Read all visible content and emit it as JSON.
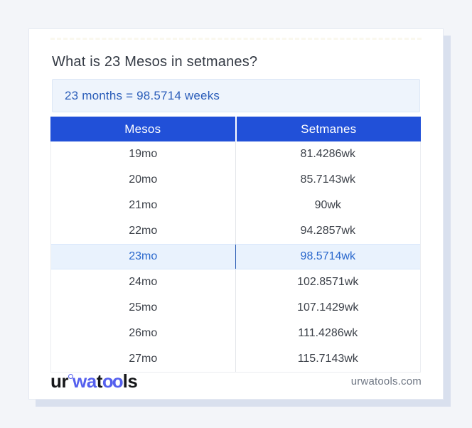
{
  "title": "What is 23 Mesos in setmanes?",
  "result": "23 months = 98.5714 weeks",
  "table": {
    "headers": [
      "Mesos",
      "Setmanes"
    ],
    "rows": [
      {
        "mesos": "19mo",
        "setmanes": "81.4286wk",
        "highlight": false
      },
      {
        "mesos": "20mo",
        "setmanes": "85.7143wk",
        "highlight": false
      },
      {
        "mesos": "21mo",
        "setmanes": "90wk",
        "highlight": false
      },
      {
        "mesos": "22mo",
        "setmanes": "94.2857wk",
        "highlight": false
      },
      {
        "mesos": "23mo",
        "setmanes": "98.5714wk",
        "highlight": true
      },
      {
        "mesos": "24mo",
        "setmanes": "102.8571wk",
        "highlight": false
      },
      {
        "mesos": "25mo",
        "setmanes": "107.1429wk",
        "highlight": false
      },
      {
        "mesos": "26mo",
        "setmanes": "111.4286wk",
        "highlight": false
      },
      {
        "mesos": "27mo",
        "setmanes": "115.7143wk",
        "highlight": false
      }
    ]
  },
  "footer": {
    "logo": {
      "segments": [
        {
          "text": "ur"
        },
        {
          "text": "wa"
        },
        {
          "text": "t"
        },
        {
          "text": "oo"
        },
        {
          "text": "ls"
        }
      ]
    },
    "domain": "urwatools.com"
  },
  "colors": {
    "page_background": "#f3f5f9",
    "card_background": "#ffffff",
    "card_shadow": "#d9e0ee",
    "header_blue": "#2150d8",
    "result_box_background": "#eef4fc",
    "result_text_blue": "#2a5db9",
    "highlight_row_background": "#e9f2fd",
    "highlight_text_blue": "#2766cc",
    "body_text": "#3c4149",
    "logo_blue": "#5560ee",
    "domain_gray": "#6e7683"
  }
}
